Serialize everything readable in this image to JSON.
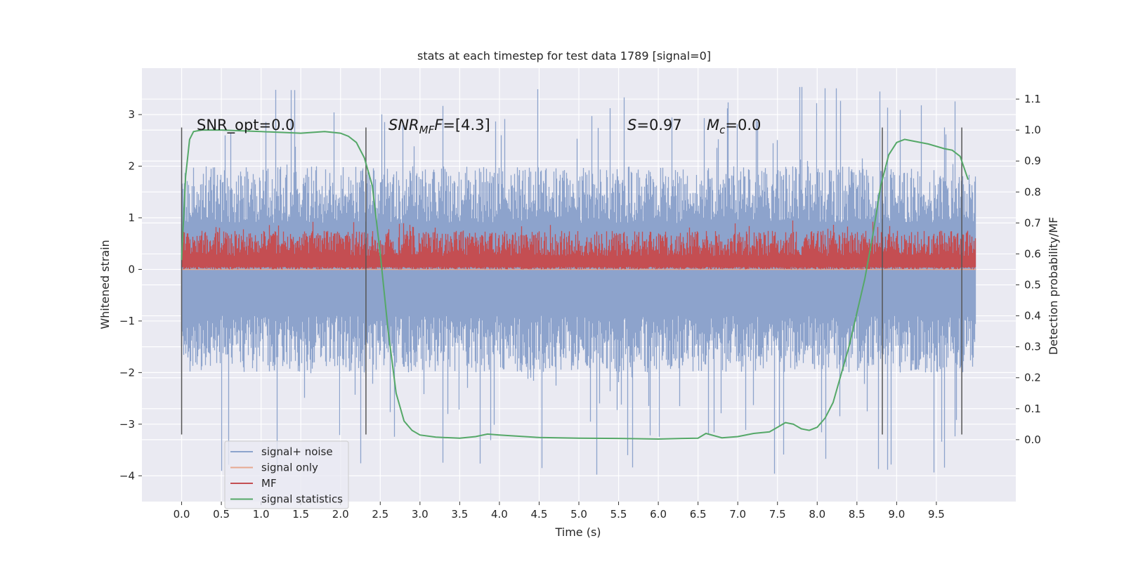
{
  "chart_data": {
    "type": "line",
    "title": "stats at each timestep for test data 1789 [signal=0]",
    "xlabel": "Time (s)",
    "ylabel": "Whitened strain",
    "y2label": "Detection probability/MF",
    "xlim": [
      -0.5,
      10.5
    ],
    "ylim": [
      -4.5,
      3.9
    ],
    "y2lim": [
      -0.2,
      1.2
    ],
    "xticks": [
      "0.0",
      "0.5",
      "1.0",
      "1.5",
      "2.0",
      "2.5",
      "3.0",
      "3.5",
      "4.0",
      "4.5",
      "5.0",
      "5.5",
      "6.0",
      "6.5",
      "7.0",
      "7.5",
      "8.0",
      "8.5",
      "9.0",
      "9.5"
    ],
    "yticks": [
      "3",
      "2",
      "1",
      "0",
      "−1",
      "−2",
      "−3",
      "−4"
    ],
    "y2ticks": [
      "1.1",
      "1.0",
      "0.9",
      "0.8",
      "0.7",
      "0.6",
      "0.5",
      "0.4",
      "0.3",
      "0.2",
      "0.1",
      "0.0"
    ],
    "grid": true,
    "legend_position": "lower-left",
    "annotations": {
      "snr_opt": "SNR_opt=0.0",
      "snr_mf_prefix": "SNR",
      "snr_mf_sub": "MF",
      "snr_mf_value": "=[4.3]",
      "s_label": "S",
      "s_value": "=0.97",
      "mc_label": "M",
      "mc_sub": "c",
      "mc_value": "=0.0"
    },
    "vertical_lines_x": [
      0.0,
      2.32,
      8.82,
      9.82
    ],
    "series": [
      {
        "name": "signal+ noise",
        "color": "#8da3cc",
        "envelope": {
          "x": [
            0.0,
            10.0
          ],
          "min": -2.0,
          "max": 2.0,
          "peak_max": 3.55,
          "peak_min": -4.0
        }
      },
      {
        "name": "signal only",
        "color": "#e7a890",
        "values_flat": 0.0
      },
      {
        "name": "MF",
        "color": "#c44e52",
        "envelope": {
          "x": [
            0.0,
            10.0
          ],
          "min": 0.0,
          "max": 0.75,
          "peak_max": 0.95
        }
      },
      {
        "name": "signal statistics",
        "color": "#55a868",
        "axis": "right",
        "x": [
          0.0,
          0.05,
          0.1,
          0.15,
          0.25,
          0.5,
          1.0,
          1.5,
          1.8,
          2.0,
          2.1,
          2.2,
          2.3,
          2.4,
          2.5,
          2.6,
          2.7,
          2.8,
          2.9,
          3.0,
          3.2,
          3.5,
          3.7,
          3.85,
          4.0,
          4.5,
          5.0,
          5.5,
          6.0,
          6.3,
          6.5,
          6.6,
          6.8,
          7.0,
          7.2,
          7.4,
          7.5,
          7.6,
          7.7,
          7.8,
          7.9,
          8.0,
          8.1,
          8.2,
          8.4,
          8.6,
          8.7,
          8.8,
          8.9,
          9.0,
          9.1,
          9.2,
          9.4,
          9.6,
          9.7,
          9.8,
          9.9
        ],
        "values": [
          0.58,
          0.85,
          0.97,
          0.995,
          1.0,
          1.0,
          0.995,
          0.99,
          0.995,
          0.99,
          0.98,
          0.96,
          0.91,
          0.82,
          0.6,
          0.35,
          0.15,
          0.06,
          0.03,
          0.015,
          0.008,
          0.005,
          0.01,
          0.018,
          0.015,
          0.007,
          0.005,
          0.004,
          0.002,
          0.004,
          0.005,
          0.02,
          0.006,
          0.01,
          0.02,
          0.025,
          0.04,
          0.055,
          0.05,
          0.035,
          0.03,
          0.04,
          0.07,
          0.12,
          0.3,
          0.52,
          0.66,
          0.82,
          0.92,
          0.96,
          0.97,
          0.965,
          0.955,
          0.94,
          0.935,
          0.915,
          0.84
        ]
      }
    ]
  }
}
